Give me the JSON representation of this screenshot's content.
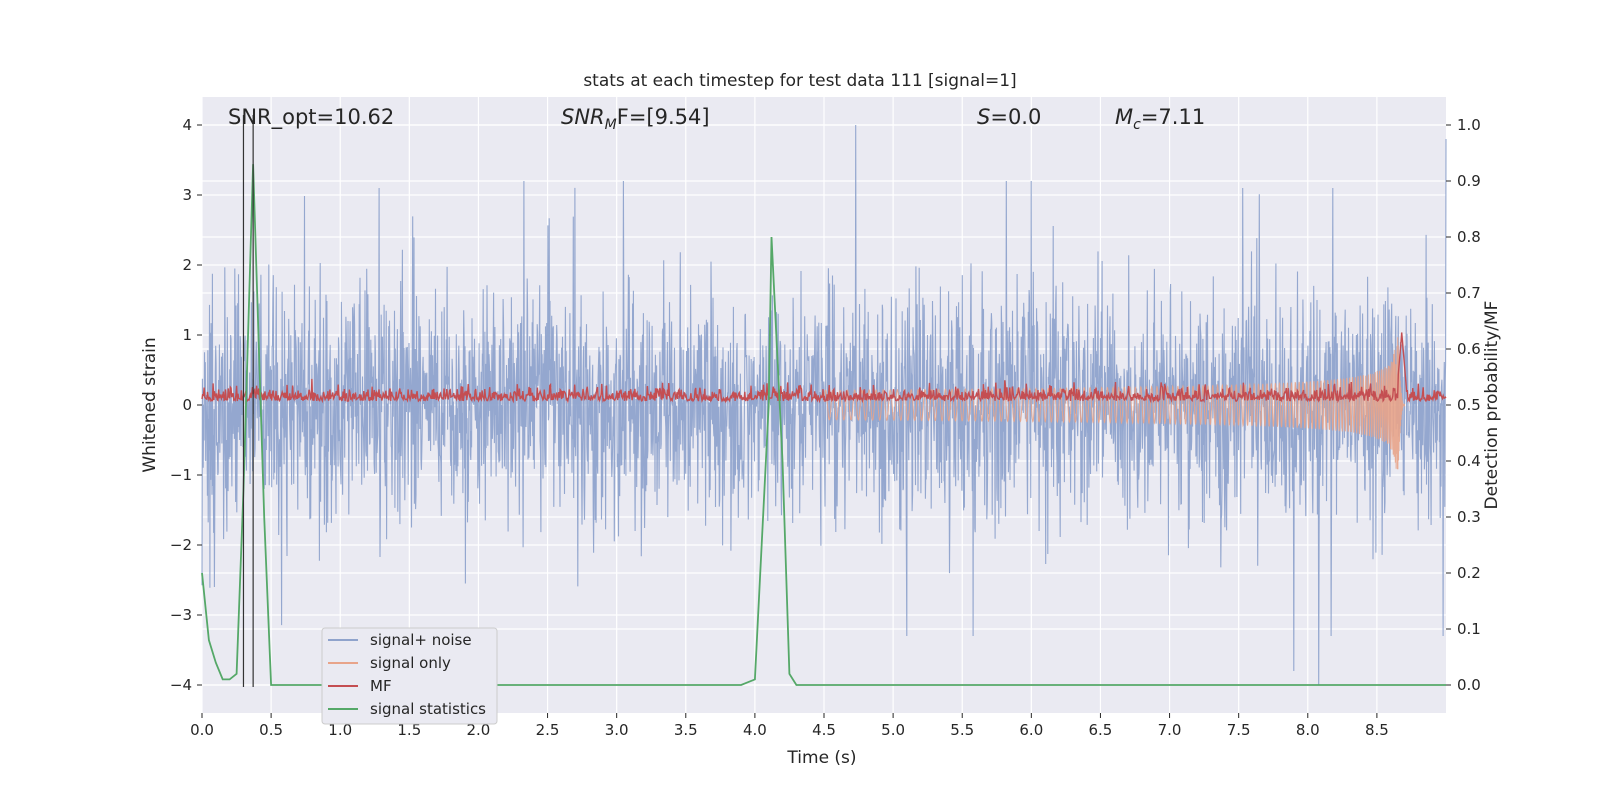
{
  "chart_data": {
    "type": "line",
    "title": "stats at each timestep for test data 111 [signal=1]",
    "xlabel": "Time (s)",
    "ylabel": "Whitened strain",
    "y2label": "Detection probability/MF",
    "xlim": [
      0,
      9
    ],
    "ylim": [
      -4.4,
      4.4
    ],
    "y2lim": [
      -0.05,
      1.05
    ],
    "x_ticks": [
      0.0,
      0.5,
      1.0,
      1.5,
      2.0,
      2.5,
      3.0,
      3.5,
      4.0,
      4.5,
      5.0,
      5.5,
      6.0,
      6.5,
      7.0,
      7.5,
      8.0,
      8.5
    ],
    "x_tick_labels": [
      "0.0",
      "0.5",
      "1.0",
      "1.5",
      "2.0",
      "2.5",
      "3.0",
      "3.5",
      "4.0",
      "4.5",
      "5.0",
      "5.5",
      "6.0",
      "6.5",
      "7.0",
      "7.5",
      "8.0",
      "8.5"
    ],
    "y_ticks": [
      4,
      3,
      2,
      1,
      0,
      -1,
      -2,
      -3,
      -4
    ],
    "y_tick_labels": [
      "4",
      "3",
      "2",
      "1",
      "0",
      "−1",
      "−2",
      "−3",
      "−4"
    ],
    "y2_ticks": [
      1.0,
      0.9,
      0.8,
      0.7,
      0.6,
      0.5,
      0.4,
      0.3,
      0.2,
      0.1,
      0.0
    ],
    "y2_tick_labels": [
      "1.0",
      "0.9",
      "0.8",
      "0.7",
      "0.6",
      "0.5",
      "0.4",
      "0.3",
      "0.2",
      "0.1",
      "0.0"
    ],
    "grid": true,
    "legend_position": "lower-left",
    "annotations": {
      "snr_opt": "SNR_opt=10.62",
      "snr_mf_sym": "SNR",
      "snr_mf_sub": "M",
      "snr_mf_rest": "F=[9.54]",
      "s_sym": "S",
      "s_rest": "=0.0",
      "mc_sym": "M",
      "mc_sub": "c",
      "mc_rest": "=7.11"
    },
    "vertical_markers_x": [
      0.3,
      0.37
    ],
    "series": [
      {
        "name": "signal+ noise",
        "axis": "left",
        "color": "#8fa3cc",
        "envelope_abs_max": 4.0,
        "typical_range": [
          -1.6,
          1.6
        ],
        "peaks_up": [
          [
            1.28,
            3.1
          ],
          [
            2.33,
            3.2
          ],
          [
            3.05,
            3.2
          ],
          [
            4.73,
            4.0
          ],
          [
            5.82,
            3.2
          ],
          [
            6.0,
            3.2
          ],
          [
            7.53,
            3.1
          ],
          [
            8.18,
            3.1
          ],
          [
            9.0,
            3.8
          ]
        ],
        "peaks_down": [
          [
            0.09,
            -2.6
          ],
          [
            5.1,
            -3.3
          ],
          [
            5.58,
            -3.3
          ],
          [
            7.9,
            -3.8
          ],
          [
            8.08,
            -4.0
          ],
          [
            8.17,
            -3.3
          ],
          [
            8.98,
            -3.3
          ]
        ]
      },
      {
        "name": "signal only",
        "axis": "left",
        "color": "#e8a48a",
        "chirp_start_x": 4.5,
        "merger_x": 8.65,
        "peak_amplitude": 1.2
      },
      {
        "name": "MF",
        "axis": "right",
        "color": "#c44e52",
        "baseline": 0.515,
        "peak": [
          8.68,
          0.63
        ]
      },
      {
        "name": "signal statistics",
        "axis": "right",
        "color": "#55a868",
        "x": [
          0.0,
          0.05,
          0.1,
          0.15,
          0.2,
          0.25,
          0.3,
          0.37,
          0.45,
          0.5,
          1.0,
          1.5,
          2.0,
          2.5,
          3.0,
          3.5,
          3.9,
          3.95,
          4.0,
          4.1,
          4.12,
          4.2,
          4.25,
          4.3,
          4.5,
          5.0,
          6.0,
          7.0,
          8.0,
          8.5,
          9.0
        ],
        "y": [
          0.2,
          0.08,
          0.04,
          0.01,
          0.01,
          0.02,
          0.35,
          0.93,
          0.3,
          0.0,
          0.0,
          0.0,
          0.0,
          0.0,
          0.0,
          0.0,
          0.0,
          0.005,
          0.01,
          0.5,
          0.8,
          0.4,
          0.02,
          0.0,
          0.0,
          0.0,
          0.0,
          0.0,
          0.0,
          0.0,
          0.0
        ]
      }
    ],
    "legend_entries": [
      "signal+ noise",
      "signal only",
      "MF",
      "signal statistics"
    ]
  }
}
